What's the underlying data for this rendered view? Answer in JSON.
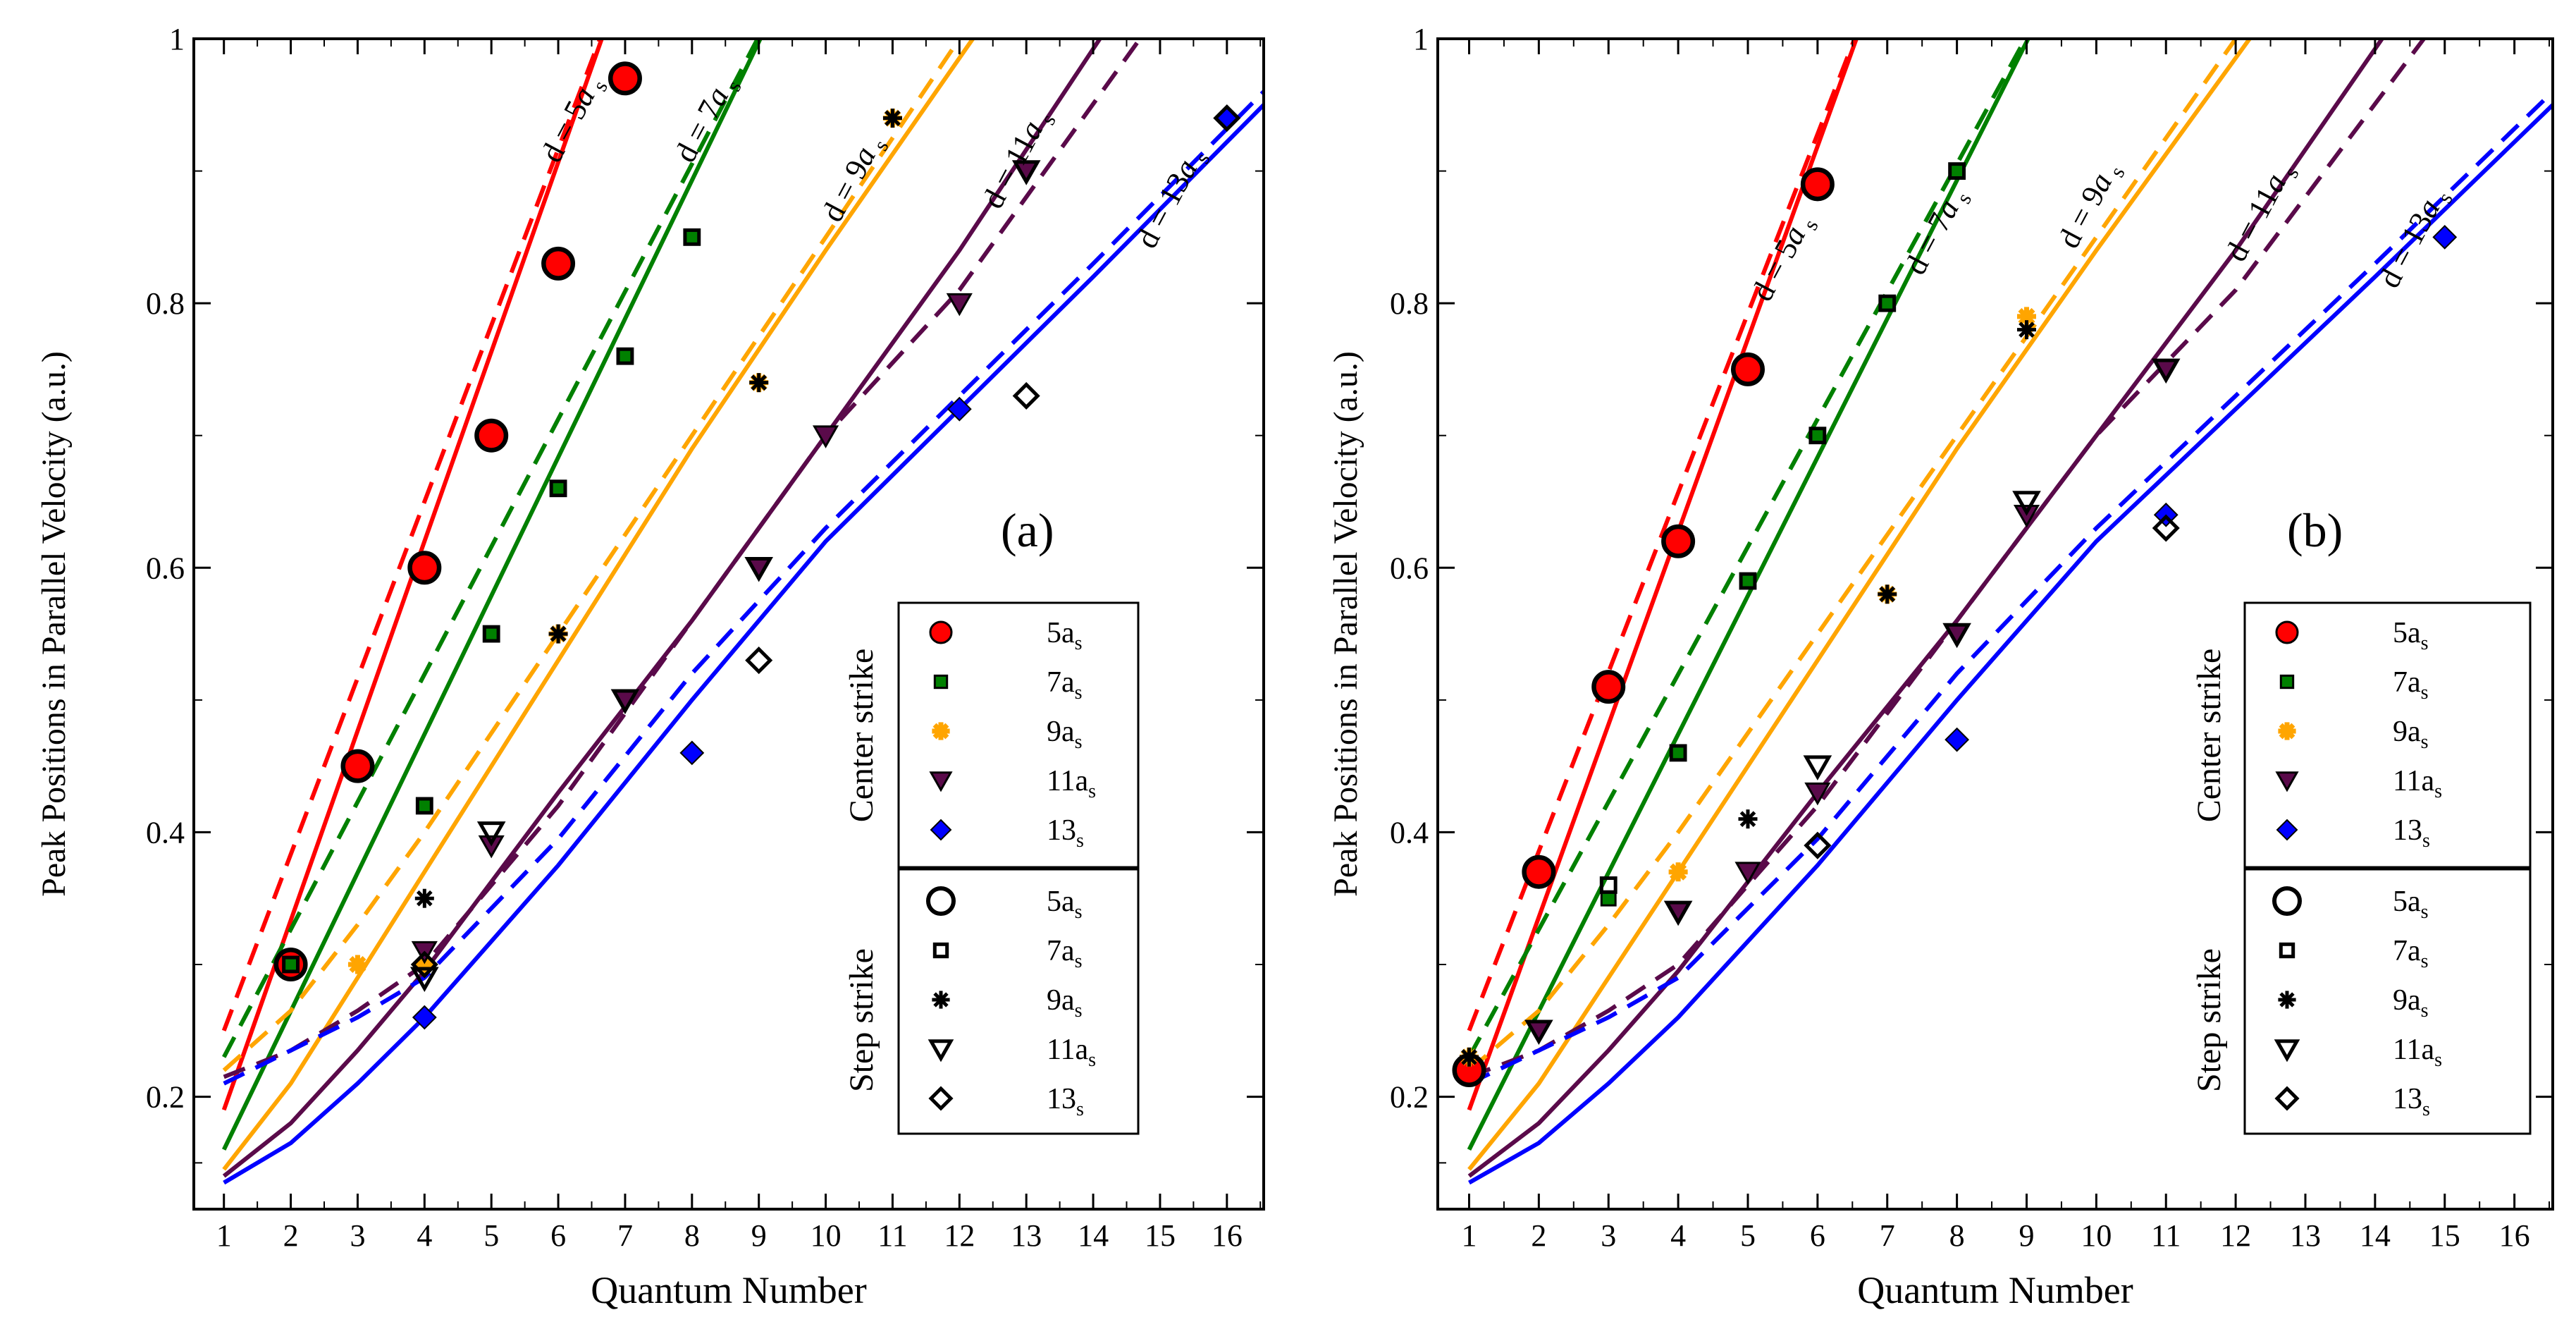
{
  "figure": {
    "xlabel": "Quantum Number",
    "ylabel": "Peak Positions in Parallel Velocity (a.u.)",
    "xticks": [
      1,
      2,
      3,
      4,
      5,
      6,
      7,
      8,
      9,
      10,
      11,
      12,
      13,
      14,
      15,
      16
    ],
    "yticks": [
      0.2,
      0.4,
      0.6,
      0.8,
      1.0
    ],
    "ytick_labels": [
      "0.2",
      "0.4",
      "0.6",
      "0.8",
      "1"
    ],
    "xlim": [
      0.55,
      16.55
    ],
    "ylim": [
      0.115,
      1.0
    ]
  },
  "colors": {
    "5as": "#ff0000",
    "7as": "#008000",
    "9as": "#ffa500",
    "11as": "#5a0a4a",
    "13as": "#0000ff"
  },
  "legend": {
    "center_label": "Center strike",
    "step_label": "Step strike",
    "entries": [
      {
        "key": "5as",
        "base": "5a",
        "sub": "s",
        "marker": "circle"
      },
      {
        "key": "7as",
        "base": "7a",
        "sub": "s",
        "marker": "square"
      },
      {
        "key": "9as",
        "base": "9a",
        "sub": "s",
        "marker": "star"
      },
      {
        "key": "11as",
        "base": "11a",
        "sub": "s",
        "marker": "triangle"
      },
      {
        "key": "13as",
        "base": "13",
        "sub": "s",
        "marker": "diamond"
      }
    ]
  },
  "chart_data": [
    {
      "type": "line",
      "panel_label": "(a)",
      "x_label": "Quantum Number",
      "y_label": "Peak Positions in Parallel Velocity (a.u.)",
      "xlim": [
        0.55,
        16.55
      ],
      "ylim": [
        0.115,
        1.0
      ],
      "annotations": [
        {
          "key": "5as",
          "text": "d = 5a",
          "sub": "s",
          "x": 6.0,
          "y": 0.905
        },
        {
          "key": "7as",
          "text": "d = 7a",
          "sub": "s",
          "x": 8.0,
          "y": 0.905
        },
        {
          "key": "9as",
          "text": "d = 9a",
          "sub": "s",
          "x": 10.2,
          "y": 0.86
        },
        {
          "key": "11as",
          "text": "d = 11a",
          "sub": "s",
          "x": 12.6,
          "y": 0.87
        },
        {
          "key": "13as",
          "text": "d = 13a",
          "sub": "s",
          "x": 14.9,
          "y": 0.84
        }
      ],
      "series": [
        {
          "key": "5as",
          "name": "d = 5as solid",
          "style": "solid",
          "x": [
            1,
            7
          ],
          "y": [
            0.19,
            1.05
          ]
        },
        {
          "key": "5as",
          "name": "d = 5as dashed",
          "style": "dashed",
          "x": [
            1,
            7
          ],
          "y": [
            0.25,
            1.05
          ]
        },
        {
          "key": "7as",
          "name": "d = 7as solid",
          "style": "solid",
          "x": [
            1,
            9.5
          ],
          "y": [
            0.16,
            1.05
          ]
        },
        {
          "key": "7as",
          "name": "d = 7as dashed",
          "style": "dashed",
          "x": [
            1,
            9.5
          ],
          "y": [
            0.23,
            1.05
          ]
        },
        {
          "key": "9as",
          "name": "d = 9as solid",
          "style": "solid",
          "x": [
            1,
            2,
            3,
            4,
            6,
            8,
            10,
            12.2
          ],
          "y": [
            0.145,
            0.21,
            0.29,
            0.37,
            0.53,
            0.69,
            0.84,
            1.0
          ]
        },
        {
          "key": "9as",
          "name": "d = 9as dashed",
          "style": "dashed",
          "x": [
            1,
            2,
            3,
            4,
            6,
            8,
            10,
            12
          ],
          "y": [
            0.22,
            0.265,
            0.33,
            0.4,
            0.55,
            0.7,
            0.85,
            1.0
          ]
        },
        {
          "key": "11as",
          "name": "d = 11as solid",
          "style": "solid",
          "x": [
            1,
            2,
            3,
            4,
            6,
            8,
            10,
            12,
            14.1
          ],
          "y": [
            0.14,
            0.18,
            0.235,
            0.295,
            0.43,
            0.56,
            0.7,
            0.84,
            1.0
          ]
        },
        {
          "key": "11as",
          "name": "d = 11as dashed",
          "style": "dashed",
          "x": [
            1,
            2,
            3,
            4,
            6,
            8,
            10,
            12,
            14.7
          ],
          "y": [
            0.215,
            0.235,
            0.265,
            0.3,
            0.42,
            0.56,
            0.7,
            0.81,
            1.0
          ]
        },
        {
          "key": "13as",
          "name": "d = 13as solid",
          "style": "solid",
          "x": [
            1,
            2,
            3,
            4,
            6,
            8,
            10,
            12,
            14,
            16.55
          ],
          "y": [
            0.135,
            0.165,
            0.21,
            0.26,
            0.375,
            0.5,
            0.62,
            0.72,
            0.82,
            0.95
          ]
        },
        {
          "key": "13as",
          "name": "d = 13as dashed",
          "style": "dashed",
          "x": [
            1,
            2,
            3,
            4,
            6,
            8,
            10,
            12,
            14,
            16.55
          ],
          "y": [
            0.21,
            0.235,
            0.26,
            0.29,
            0.395,
            0.52,
            0.63,
            0.73,
            0.83,
            0.96
          ]
        }
      ],
      "points": [
        {
          "key": "5as",
          "marker": "circle",
          "group": "center",
          "x": [
            2,
            3,
            4,
            5,
            6,
            7
          ],
          "y": [
            0.3,
            0.45,
            0.6,
            0.7,
            0.83,
            0.97
          ]
        },
        {
          "key": "5as",
          "marker": "circle",
          "group": "step",
          "x": [
            2,
            3,
            4,
            5,
            6,
            7
          ],
          "y": [
            0.3,
            0.45,
            0.6,
            0.7,
            0.83,
            0.97
          ]
        },
        {
          "key": "7as",
          "marker": "square",
          "group": "center",
          "x": [
            2,
            4,
            5,
            6,
            7,
            8
          ],
          "y": [
            0.3,
            0.42,
            0.55,
            0.66,
            0.76,
            0.85
          ]
        },
        {
          "key": "7as",
          "marker": "square",
          "group": "step",
          "x": [
            2,
            4,
            5,
            6,
            7,
            8
          ],
          "y": [
            0.3,
            0.42,
            0.55,
            0.66,
            0.76,
            0.85
          ]
        },
        {
          "key": "9as",
          "marker": "star",
          "group": "center",
          "x": [
            3,
            4,
            6,
            9,
            11
          ],
          "y": [
            0.3,
            0.3,
            0.55,
            0.74,
            0.94
          ]
        },
        {
          "key": "9as",
          "marker": "star",
          "group": "step",
          "x": [
            4,
            6,
            9,
            11
          ],
          "y": [
            0.35,
            0.55,
            0.74,
            0.94
          ]
        },
        {
          "key": "11as",
          "marker": "triangle",
          "group": "center",
          "x": [
            4,
            5,
            7,
            9,
            10,
            12,
            13
          ],
          "y": [
            0.31,
            0.39,
            0.5,
            0.6,
            0.7,
            0.8,
            0.9
          ]
        },
        {
          "key": "11as",
          "marker": "triangle",
          "group": "step",
          "x": [
            4,
            5,
            7,
            9,
            13
          ],
          "y": [
            0.29,
            0.4,
            0.5,
            0.6,
            0.9
          ]
        },
        {
          "key": "13as",
          "marker": "diamond",
          "group": "center",
          "x": [
            4,
            8,
            12,
            16
          ],
          "y": [
            0.26,
            0.46,
            0.72,
            0.94
          ]
        },
        {
          "key": "13as",
          "marker": "diamond",
          "group": "step",
          "x": [
            4,
            9,
            13,
            16
          ],
          "y": [
            0.3,
            0.53,
            0.73,
            0.94
          ]
        }
      ]
    },
    {
      "type": "line",
      "panel_label": "(b)",
      "x_label": "Quantum Number",
      "y_label": "Peak Positions in Parallel Velocity (a.u.)",
      "xlim": [
        0.55,
        16.55
      ],
      "ylim": [
        0.115,
        1.0
      ],
      "annotations": [
        {
          "key": "5as",
          "text": "d = 5a",
          "sub": "s",
          "x": 5.3,
          "y": 0.8
        },
        {
          "key": "7as",
          "text": "d = 7a",
          "sub": "s",
          "x": 7.5,
          "y": 0.82
        },
        {
          "key": "9as",
          "text": "d = 9a",
          "sub": "s",
          "x": 9.7,
          "y": 0.84
        },
        {
          "key": "11as",
          "text": "d = 11a",
          "sub": "s",
          "x": 12.1,
          "y": 0.83
        },
        {
          "key": "13as",
          "text": "d = 13a",
          "sub": "s",
          "x": 14.3,
          "y": 0.81
        }
      ],
      "series": [
        {
          "key": "5as",
          "name": "d = 5as solid",
          "style": "solid",
          "x": [
            1,
            6.9
          ],
          "y": [
            0.19,
            1.05
          ]
        },
        {
          "key": "5as",
          "name": "d = 5as dashed",
          "style": "dashed",
          "x": [
            1,
            6.9
          ],
          "y": [
            0.25,
            1.05
          ]
        },
        {
          "key": "7as",
          "name": "d = 7as solid",
          "style": "solid",
          "x": [
            1,
            9.5
          ],
          "y": [
            0.16,
            1.05
          ]
        },
        {
          "key": "7as",
          "name": "d = 7as dashed",
          "style": "dashed",
          "x": [
            1,
            9.5
          ],
          "y": [
            0.23,
            1.05
          ]
        },
        {
          "key": "9as",
          "name": "d = 9as solid",
          "style": "solid",
          "x": [
            1,
            2,
            3,
            4,
            6,
            8,
            10,
            12.2
          ],
          "y": [
            0.145,
            0.21,
            0.29,
            0.37,
            0.53,
            0.69,
            0.84,
            1.0
          ]
        },
        {
          "key": "9as",
          "name": "d = 9as dashed",
          "style": "dashed",
          "x": [
            1,
            2,
            3,
            4,
            6,
            8,
            10,
            12
          ],
          "y": [
            0.22,
            0.265,
            0.33,
            0.4,
            0.55,
            0.7,
            0.85,
            1.0
          ]
        },
        {
          "key": "11as",
          "name": "d = 11as solid",
          "style": "solid",
          "x": [
            1,
            2,
            3,
            4,
            6,
            8,
            10,
            12,
            14.1
          ],
          "y": [
            0.14,
            0.18,
            0.235,
            0.295,
            0.43,
            0.56,
            0.7,
            0.84,
            1.0
          ]
        },
        {
          "key": "11as",
          "name": "d = 11as dashed",
          "style": "dashed",
          "x": [
            1,
            2,
            3,
            4,
            6,
            8,
            10,
            12,
            14.7
          ],
          "y": [
            0.215,
            0.235,
            0.265,
            0.3,
            0.42,
            0.56,
            0.7,
            0.81,
            1.0
          ]
        },
        {
          "key": "13as",
          "name": "d = 13as solid",
          "style": "solid",
          "x": [
            1,
            2,
            3,
            4,
            6,
            8,
            10,
            12,
            14,
            16.55
          ],
          "y": [
            0.135,
            0.165,
            0.21,
            0.26,
            0.375,
            0.5,
            0.62,
            0.72,
            0.82,
            0.95
          ]
        },
        {
          "key": "13as",
          "name": "d = 13as dashed",
          "style": "dashed",
          "x": [
            1,
            2,
            3,
            4,
            6,
            8,
            10,
            12,
            14,
            16.55
          ],
          "y": [
            0.21,
            0.235,
            0.26,
            0.29,
            0.395,
            0.52,
            0.63,
            0.73,
            0.83,
            0.96
          ]
        }
      ],
      "points": [
        {
          "key": "5as",
          "marker": "circle",
          "group": "center",
          "x": [
            1,
            2,
            3,
            4,
            5,
            6
          ],
          "y": [
            0.22,
            0.37,
            0.51,
            0.62,
            0.75,
            0.89
          ]
        },
        {
          "key": "5as",
          "marker": "circle",
          "group": "step",
          "x": [
            1,
            2,
            3,
            4,
            5,
            6
          ],
          "y": [
            0.22,
            0.37,
            0.51,
            0.62,
            0.75,
            0.89
          ]
        },
        {
          "key": "7as",
          "marker": "square",
          "group": "center",
          "x": [
            3,
            4,
            5,
            6,
            7,
            8
          ],
          "y": [
            0.35,
            0.46,
            0.59,
            0.7,
            0.8,
            0.9
          ]
        },
        {
          "key": "7as",
          "marker": "square",
          "group": "step",
          "x": [
            3,
            4,
            5,
            6,
            7,
            8
          ],
          "y": [
            0.36,
            0.46,
            0.59,
            0.7,
            0.8,
            0.9
          ]
        },
        {
          "key": "9as",
          "marker": "star",
          "group": "center",
          "x": [
            1,
            4,
            7,
            9
          ],
          "y": [
            0.23,
            0.37,
            0.58,
            0.79
          ]
        },
        {
          "key": "9as",
          "marker": "star",
          "group": "step",
          "x": [
            1,
            5,
            7,
            9
          ],
          "y": [
            0.23,
            0.41,
            0.58,
            0.78
          ]
        },
        {
          "key": "11as",
          "marker": "triangle",
          "group": "center",
          "x": [
            2,
            4,
            5,
            6,
            8,
            9,
            11
          ],
          "y": [
            0.25,
            0.34,
            0.37,
            0.43,
            0.55,
            0.64,
            0.75
          ]
        },
        {
          "key": "11as",
          "marker": "triangle",
          "group": "step",
          "x": [
            2,
            4,
            6,
            8,
            9,
            11
          ],
          "y": [
            0.25,
            0.34,
            0.45,
            0.55,
            0.65,
            0.75
          ]
        },
        {
          "key": "13as",
          "marker": "diamond",
          "group": "center",
          "x": [
            8,
            11,
            15
          ],
          "y": [
            0.47,
            0.64,
            0.85
          ]
        },
        {
          "key": "13as",
          "marker": "diamond",
          "group": "step",
          "x": [
            6,
            11
          ],
          "y": [
            0.39,
            0.63
          ]
        }
      ]
    }
  ]
}
